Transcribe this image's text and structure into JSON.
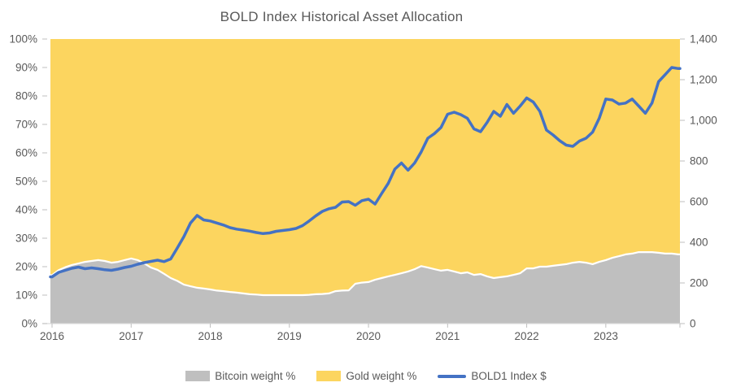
{
  "chart_data": {
    "type": "area+line",
    "title": "BOLD Index Historical Asset Allocation",
    "x_start": "2016-01",
    "x_interval": "monthly",
    "x_labels": [
      "2016",
      "2017",
      "2018",
      "2019",
      "2020",
      "2021",
      "2022",
      "2023"
    ],
    "left_axis": {
      "min": 0,
      "max": 100,
      "step": 10,
      "format": "percent",
      "labels": [
        "0%",
        "10%",
        "20%",
        "30%",
        "40%",
        "50%",
        "60%",
        "70%",
        "80%",
        "90%",
        "100%"
      ]
    },
    "right_axis": {
      "min": 0,
      "max": 1400,
      "step": 200,
      "labels": [
        "0",
        "200",
        "400",
        "600",
        "800",
        "1,000",
        "1,200",
        "1,400"
      ]
    },
    "layout": {
      "grid": false,
      "legend_position": "bottom",
      "text_color": "#595959",
      "axis_line_color": "#D9D9D9",
      "tick_color": "#BFBFBF",
      "boundary_stroke_color": "#FFFFFF"
    },
    "series": [
      {
        "name": "Bitcoin weight %",
        "type": "area",
        "axis": "left",
        "color": "#BFBFBF",
        "values": [
          17.0,
          18.8,
          19.8,
          20.6,
          21.1,
          21.7,
          22.0,
          22.3,
          22.0,
          21.4,
          21.7,
          22.3,
          22.9,
          22.3,
          21.1,
          19.7,
          18.9,
          17.5,
          16.0,
          15.0,
          13.7,
          13.1,
          12.6,
          12.3,
          12.0,
          11.6,
          11.4,
          11.1,
          10.9,
          10.6,
          10.3,
          10.2,
          10.0,
          10.0,
          10.0,
          10.0,
          10.0,
          10.0,
          10.0,
          10.1,
          10.3,
          10.4,
          10.6,
          11.4,
          11.6,
          11.7,
          14.0,
          14.4,
          14.6,
          15.4,
          16.0,
          16.6,
          17.1,
          17.7,
          18.3,
          19.1,
          20.2,
          19.7,
          19.1,
          18.6,
          18.9,
          18.3,
          17.7,
          18.0,
          17.1,
          17.4,
          16.6,
          16.0,
          16.3,
          16.6,
          17.1,
          17.7,
          19.4,
          19.4,
          20.0,
          20.0,
          20.3,
          20.6,
          20.9,
          21.4,
          21.7,
          21.4,
          20.9,
          21.7,
          22.3,
          23.1,
          23.7,
          24.3,
          24.6,
          25.1,
          25.1,
          25.1,
          24.9,
          24.6,
          24.6,
          24.3
        ]
      },
      {
        "name": "Gold weight %",
        "type": "area",
        "axis": "left",
        "stacked_to": 100,
        "color": "#FCD55F",
        "values": [
          83.0,
          81.2,
          80.2,
          79.4,
          78.9,
          78.3,
          78.0,
          77.7,
          78.0,
          78.6,
          78.3,
          77.7,
          77.1,
          77.7,
          78.9,
          80.3,
          81.1,
          82.5,
          84.0,
          85.0,
          86.3,
          86.9,
          87.4,
          87.7,
          88.0,
          88.4,
          88.6,
          88.9,
          89.1,
          89.4,
          89.7,
          89.8,
          90.0,
          90.0,
          90.0,
          90.0,
          90.0,
          90.0,
          90.0,
          89.9,
          89.7,
          89.6,
          89.4,
          88.6,
          88.4,
          88.3,
          86.0,
          85.6,
          85.4,
          84.6,
          84.0,
          83.4,
          82.9,
          82.3,
          81.7,
          80.9,
          79.8,
          80.3,
          80.9,
          81.4,
          81.1,
          81.7,
          82.3,
          82.0,
          82.9,
          82.6,
          83.4,
          84.0,
          83.7,
          83.4,
          82.9,
          82.3,
          80.6,
          80.6,
          80.0,
          80.0,
          79.7,
          79.4,
          79.1,
          78.6,
          78.3,
          78.6,
          79.1,
          78.3,
          77.7,
          76.9,
          76.3,
          75.7,
          75.4,
          74.9,
          74.9,
          74.9,
          75.1,
          75.4,
          75.4,
          75.7
        ]
      },
      {
        "name": "BOLD1 Index $",
        "type": "line",
        "axis": "right",
        "color": "#4472C4",
        "values": [
          230,
          252,
          262,
          272,
          278,
          270,
          274,
          270,
          265,
          262,
          268,
          276,
          282,
          292,
          300,
          306,
          312,
          305,
          318,
          372,
          428,
          495,
          532,
          510,
          505,
          495,
          485,
          472,
          465,
          460,
          455,
          448,
          443,
          446,
          454,
          458,
          462,
          468,
          482,
          505,
          530,
          552,
          565,
          572,
          598,
          600,
          582,
          605,
          612,
          588,
          640,
          690,
          760,
          790,
          755,
          790,
          845,
          912,
          935,
          965,
          1030,
          1040,
          1028,
          1010,
          958,
          944,
          990,
          1044,
          1020,
          1078,
          1035,
          1070,
          1110,
          1090,
          1044,
          952,
          928,
          900,
          878,
          872,
          898,
          912,
          942,
          1010,
          1105,
          1100,
          1080,
          1085,
          1105,
          1070,
          1035,
          1085,
          1190,
          1225,
          1260,
          1255
        ]
      }
    ]
  }
}
